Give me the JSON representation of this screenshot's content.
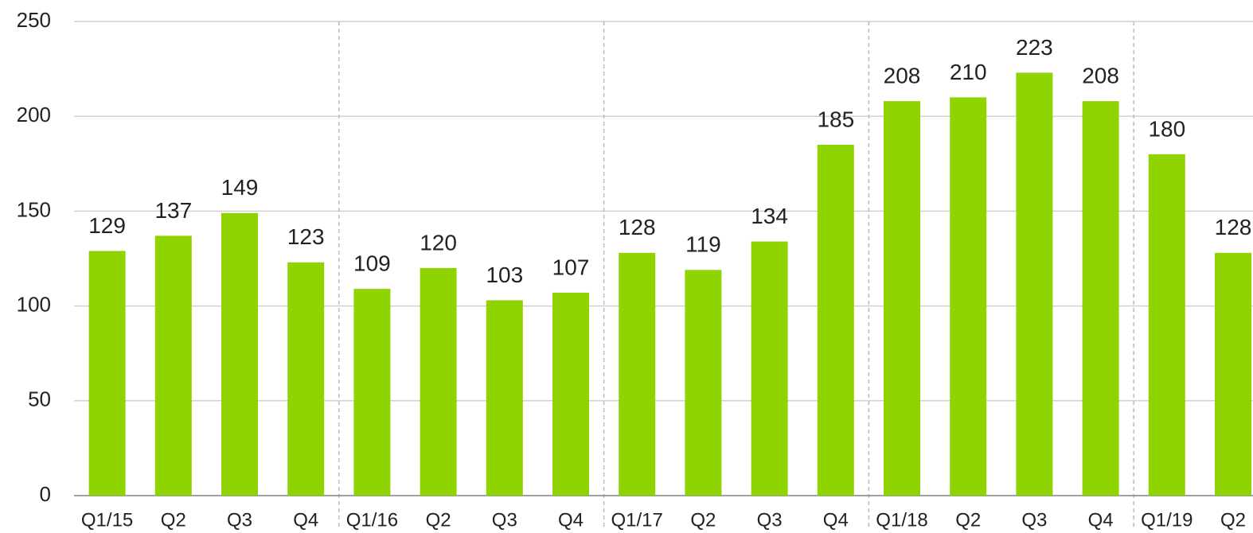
{
  "chart_data": {
    "type": "bar",
    "categories": [
      "Q1/15",
      "Q2",
      "Q3",
      "Q4",
      "Q1/16",
      "Q2",
      "Q3",
      "Q4",
      "Q1/17",
      "Q2",
      "Q3",
      "Q4",
      "Q1/18",
      "Q2",
      "Q3",
      "Q4",
      "Q1/19",
      "Q2"
    ],
    "values": [
      129,
      137,
      149,
      123,
      109,
      120,
      103,
      107,
      128,
      119,
      134,
      185,
      208,
      210,
      223,
      208,
      180,
      128
    ],
    "color": "#8fd400",
    "ylim": [
      0,
      250
    ],
    "yticks": [
      0,
      50,
      100,
      150,
      200,
      250
    ],
    "grid": true
  }
}
